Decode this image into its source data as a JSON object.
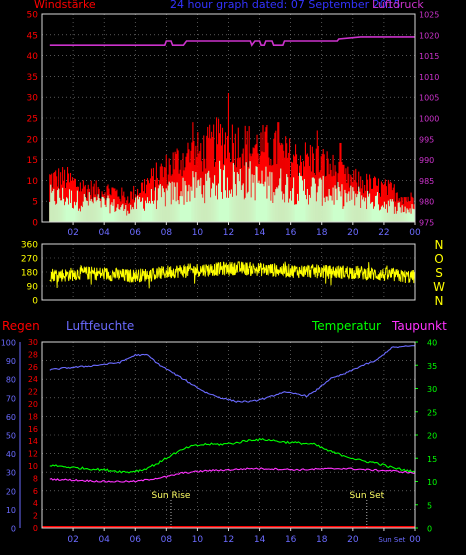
{
  "title": "24 hour graph dated: 07 September 2015",
  "colors": {
    "background": "#000000",
    "frame": "#d9d9d9",
    "grid": "#8a8a8a",
    "wind_gust": "#ff0000",
    "wind_avg": "#ccffcc",
    "pressure": "#cc33cc",
    "direction": "#ffff00",
    "rain": "#ff0000",
    "humidity": "#6b6bff",
    "temperature": "#00ff00",
    "dewpoint": "#ff33ff",
    "title": "#3333ff"
  },
  "x_ticks": [
    "02",
    "04",
    "06",
    "08",
    "10",
    "12",
    "14",
    "16",
    "18",
    "20",
    "22",
    "00"
  ],
  "x_ticks_bottom": [
    "02",
    "04",
    "06",
    "08",
    "10",
    "12",
    "14",
    "16",
    "18",
    "20",
    "Sun Set",
    "00"
  ],
  "chart_data": [
    {
      "type": "bar",
      "title": "24 hour graph dated: 07 September 2015",
      "left_axis_label": "Windstärke",
      "right_axis_label": "Luftdruck",
      "left_ylim": [
        0,
        50
      ],
      "left_ticks": [
        "0",
        "5",
        "10",
        "15",
        "20",
        "25",
        "30",
        "35",
        "40",
        "45",
        "50"
      ],
      "right_ylim": [
        975,
        1025
      ],
      "right_ticks": [
        "975",
        "980",
        "985",
        "990",
        "995",
        "1000",
        "1005",
        "1010",
        "1015",
        "1020",
        "1025"
      ],
      "series": [
        {
          "name": "Windstärke",
          "note": "gust",
          "hourly": [
            11,
            11,
            9,
            8,
            8,
            6,
            9,
            12,
            15,
            17,
            18,
            21,
            20,
            19,
            19,
            17,
            16,
            16,
            14,
            11,
            10,
            9,
            8,
            6
          ],
          "peaks": [
            {
              "hour": 12.0,
              "value": 31
            },
            {
              "hour": 9.7,
              "value": 24
            },
            {
              "hour": 15.2,
              "value": 24
            },
            {
              "hour": 17.7,
              "value": 22
            },
            {
              "hour": 19.2,
              "value": 19
            }
          ]
        },
        {
          "name": "Windstärke",
          "note": "average",
          "hourly": [
            6,
            6,
            5,
            5,
            4,
            3,
            5,
            6,
            7,
            8,
            9,
            10,
            10,
            10,
            9,
            9,
            8,
            8,
            7,
            6,
            6,
            5,
            4,
            3
          ]
        },
        {
          "name": "Luftdruck",
          "points": [
            [
              0.5,
              1017.5
            ],
            [
              7.9,
              1017.5
            ],
            [
              8.0,
              1018.5
            ],
            [
              8.3,
              1018.5
            ],
            [
              8.4,
              1017.5
            ],
            [
              9.1,
              1017.5
            ],
            [
              9.3,
              1018.5
            ],
            [
              13.4,
              1018.5
            ],
            [
              13.5,
              1017.5
            ],
            [
              13.7,
              1018.5
            ],
            [
              14.0,
              1018.5
            ],
            [
              14.1,
              1017.5
            ],
            [
              14.3,
              1017.5
            ],
            [
              14.4,
              1018.5
            ],
            [
              14.8,
              1018.5
            ],
            [
              14.9,
              1017.5
            ],
            [
              15.5,
              1017.5
            ],
            [
              15.6,
              1018.5
            ],
            [
              19.0,
              1018.5
            ],
            [
              19.1,
              1019.0
            ],
            [
              20.5,
              1019.5
            ],
            [
              24.0,
              1019.5
            ]
          ]
        }
      ]
    },
    {
      "type": "line",
      "ylim": [
        0,
        360
      ],
      "left_ticks": [
        "0",
        "90",
        "180",
        "270",
        "360"
      ],
      "right_labels": [
        "N",
        "W",
        "S",
        "O",
        "N"
      ],
      "series": [
        {
          "name": "direction",
          "hourly": [
            165,
            160,
            175,
            170,
            165,
            155,
            160,
            170,
            185,
            190,
            195,
            200,
            205,
            200,
            195,
            190,
            185,
            185,
            180,
            180,
            175,
            165,
            160,
            150
          ]
        }
      ]
    },
    {
      "type": "line",
      "legend": [
        "Regen",
        "Luftfeuchte",
        "Temperatur",
        "Taupunkt"
      ],
      "humidity_ticks": [
        "0",
        "10",
        "20",
        "30",
        "40",
        "50",
        "60",
        "70",
        "80",
        "90",
        "100"
      ],
      "rain_ticks": [
        "0",
        "2",
        "4",
        "6",
        "8",
        "10",
        "12",
        "14",
        "16",
        "18",
        "20",
        "22",
        "24",
        "26",
        "28",
        "30"
      ],
      "temp_ticks": [
        "0",
        "5",
        "10",
        "15",
        "20",
        "25",
        "30",
        "35",
        "40"
      ],
      "humidity_ylim": [
        0,
        100
      ],
      "rain_ylim": [
        0,
        30
      ],
      "temp_ylim": [
        0,
        40
      ],
      "annotations": [
        {
          "label": "Sun Rise",
          "hour": 8.3
        },
        {
          "label": "Sun Set",
          "hour": 20.9
        }
      ],
      "series": [
        {
          "name": "Regen",
          "points": [
            [
              0.5,
              0
            ],
            [
              24.0,
              0
            ]
          ]
        },
        {
          "name": "Luftfeuchte",
          "points": [
            [
              0.5,
              85
            ],
            [
              1.5,
              86
            ],
            [
              3.0,
              87
            ],
            [
              5.0,
              89
            ],
            [
              6.0,
              93
            ],
            [
              6.8,
              93
            ],
            [
              7.5,
              88
            ],
            [
              8.5,
              83
            ],
            [
              9.5,
              78
            ],
            [
              10.5,
              73
            ],
            [
              11.5,
              70
            ],
            [
              12.5,
              68
            ],
            [
              13.5,
              68
            ],
            [
              14.5,
              70
            ],
            [
              15.5,
              73
            ],
            [
              16.5,
              72
            ],
            [
              17.0,
              71
            ],
            [
              17.5,
              73
            ],
            [
              18.5,
              80
            ],
            [
              19.5,
              83
            ],
            [
              20.5,
              87
            ],
            [
              21.5,
              90
            ],
            [
              22.5,
              97
            ],
            [
              24.0,
              98
            ]
          ]
        },
        {
          "name": "Temperatur",
          "points": [
            [
              0.5,
              13.5
            ],
            [
              2.0,
              13.0
            ],
            [
              4.0,
              12.5
            ],
            [
              5.5,
              12.0
            ],
            [
              6.5,
              12.5
            ],
            [
              7.5,
              14.0
            ],
            [
              8.5,
              16.0
            ],
            [
              9.5,
              17.5
            ],
            [
              10.5,
              18.0
            ],
            [
              11.5,
              18.0
            ],
            [
              12.5,
              18.3
            ],
            [
              13.5,
              19.0
            ],
            [
              14.5,
              19.0
            ],
            [
              15.5,
              18.5
            ],
            [
              16.5,
              18.3
            ],
            [
              17.5,
              18.0
            ],
            [
              18.5,
              16.5
            ],
            [
              19.5,
              15.5
            ],
            [
              20.5,
              14.5
            ],
            [
              21.5,
              14.0
            ],
            [
              22.5,
              13.0
            ],
            [
              24.0,
              12.0
            ]
          ]
        },
        {
          "name": "Taupunkt",
          "points": [
            [
              0.5,
              10.5
            ],
            [
              2.0,
              10.3
            ],
            [
              4.0,
              10.0
            ],
            [
              6.0,
              10.0
            ],
            [
              7.0,
              10.5
            ],
            [
              8.0,
              11.0
            ],
            [
              9.0,
              11.8
            ],
            [
              10.5,
              12.3
            ],
            [
              12.0,
              12.5
            ],
            [
              13.5,
              12.8
            ],
            [
              15.0,
              12.7
            ],
            [
              16.5,
              12.5
            ],
            [
              18.0,
              12.7
            ],
            [
              19.5,
              12.8
            ],
            [
              21.0,
              12.5
            ],
            [
              22.5,
              12.3
            ],
            [
              24.0,
              11.8
            ]
          ]
        }
      ]
    }
  ]
}
